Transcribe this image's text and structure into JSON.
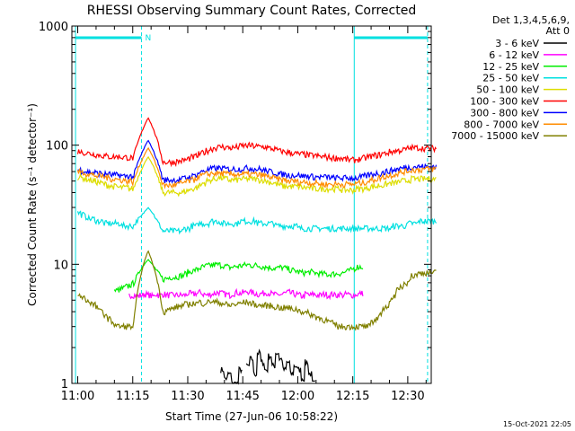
{
  "chart_data": {
    "type": "line",
    "title": "RHESSI Observing Summary Count Rates, Corrected",
    "xlabel": "Start Time (27-Jun-06 10:58:22)",
    "ylabel": "Corrected Count Rate (s⁻¹ detector⁻¹)",
    "y_scale": "log",
    "ylim": [
      1,
      1000
    ],
    "y_ticks": [
      {
        "value": 1,
        "label": "1"
      },
      {
        "value": 10,
        "label": "10"
      },
      {
        "value": 100,
        "label": "100"
      },
      {
        "value": 1000,
        "label": "1000"
      }
    ],
    "x_ticks": [
      "11:00",
      "11:15",
      "11:30",
      "11:45",
      "12:00",
      "12:15",
      "12:30"
    ],
    "x_tick_minutes": [
      0,
      15,
      30,
      45,
      60,
      75,
      90
    ],
    "x_range_minutes": [
      -1.6,
      96.4
    ],
    "legend_header": [
      "Det 1,3,4,5,6,9,",
      "Att 0"
    ],
    "legend_position": "right",
    "night_marker": "N",
    "bands": [
      {
        "x_minutes": [
          -0.6,
          17.4
        ],
        "color": "#00e0e0"
      },
      {
        "x_minutes": [
          75.4,
          95.4
        ],
        "color": "#00e0e0"
      }
    ],
    "series": [
      {
        "name": "3 - 6 keV",
        "color": "#000000",
        "flare": 3.2,
        "values": [
          0,
          0,
          0,
          0,
          0,
          0,
          0,
          0,
          0,
          0,
          0,
          0,
          0,
          0,
          0,
          0,
          0,
          0,
          0,
          0,
          0,
          0,
          0,
          0,
          0,
          0,
          0,
          0,
          0,
          0,
          0,
          0,
          0,
          0,
          0,
          0,
          0,
          0,
          0,
          1.3,
          1.1,
          1.2,
          1.0,
          1.0,
          1.3,
          0,
          1.4,
          1.6,
          1.2,
          1.8,
          1.5,
          1.3,
          1.7,
          1.4,
          1.8,
          1.6,
          1.3,
          1.5,
          1.2,
          1.4,
          1.3,
          1.1,
          1.5,
          1.2,
          1.0,
          0,
          0,
          0,
          0,
          0,
          0,
          0,
          0,
          0,
          0,
          0,
          0,
          0,
          0,
          0,
          0,
          0,
          0,
          0,
          0,
          0,
          0,
          0,
          0,
          0,
          0,
          0,
          0,
          0,
          0,
          0,
          0,
          0
        ]
      },
      {
        "name": "6 - 12 keV",
        "color": "#ff00ff",
        "flare": 5.0,
        "values": [
          0,
          0,
          0,
          0,
          0,
          0,
          0,
          0,
          0,
          0,
          0,
          0,
          0,
          0,
          5.5,
          5.5,
          5.4,
          5.5,
          5.6,
          5.5,
          5.4,
          5.6,
          5.5,
          5.6,
          5.5,
          5.5,
          5.5,
          5.5,
          5.5,
          5.5,
          5.7,
          5.6,
          5.7,
          5.8,
          5.6,
          5.5,
          5.6,
          5.7,
          5.8,
          5.7,
          5.6,
          5.5,
          5.7,
          5.8,
          5.7,
          5.8,
          5.9,
          5.8,
          5.7,
          5.6,
          5.7,
          5.8,
          5.7,
          5.6,
          5.5,
          5.6,
          5.7,
          5.8,
          5.7,
          5.6,
          5.5,
          5.4,
          5.6,
          5.5,
          5.6,
          5.5,
          5.5,
          5.6,
          5.5,
          5.6,
          5.5,
          5.6,
          5.5,
          5.6,
          5.5,
          5.5,
          5.6,
          5.7,
          0,
          0,
          0,
          0,
          0,
          0,
          0,
          0,
          0,
          0,
          0,
          0,
          0,
          0,
          0,
          0,
          0
        ]
      },
      {
        "name": "12 - 25 keV",
        "color": "#00ee00",
        "flare": 11.0,
        "values": [
          0,
          0,
          0,
          0,
          0,
          0,
          0,
          0,
          0,
          0,
          6.0,
          6.1,
          6.3,
          6.5,
          6.7,
          6.9,
          7.0,
          7.2,
          7.2,
          7.3,
          7.3,
          7.3,
          7.4,
          7.5,
          7.6,
          7.8,
          7.8,
          7.9,
          8.0,
          8.3,
          8.6,
          8.8,
          9.0,
          9.3,
          9.5,
          9.7,
          9.8,
          9.9,
          9.9,
          9.8,
          9.6,
          9.4,
          9.5,
          9.6,
          9.7,
          9.8,
          9.9,
          9.8,
          9.8,
          9.7,
          9.6,
          9.5,
          9.4,
          9.3,
          9.3,
          9.4,
          9.3,
          9.1,
          8.9,
          8.8,
          8.6,
          8.5,
          8.5,
          8.6,
          8.5,
          8.4,
          8.3,
          8.3,
          8.2,
          8.3,
          8.3,
          8.4,
          8.5,
          8.7,
          8.9,
          9.2,
          9.5,
          9.5,
          0,
          0,
          0,
          0,
          0,
          0,
          0,
          0,
          0,
          0,
          0,
          0,
          0,
          0,
          0,
          0,
          0
        ]
      },
      {
        "name": "25 - 50 keV",
        "color": "#00e0e0",
        "flare": 30.0,
        "values": [
          27,
          26,
          25,
          24,
          24,
          23,
          23,
          22,
          22,
          22,
          22,
          22,
          21,
          21,
          21,
          21,
          21,
          20,
          20,
          20,
          20,
          19,
          19,
          19,
          19,
          19,
          19,
          19,
          19,
          20,
          20,
          21,
          21,
          22,
          22,
          22,
          23,
          23,
          23,
          22,
          22,
          22,
          22,
          22,
          23,
          23,
          23,
          23,
          23,
          22,
          22,
          22,
          22,
          22,
          21,
          21,
          21,
          21,
          21,
          21,
          20,
          20,
          20,
          20,
          20,
          20,
          20,
          20,
          20,
          20,
          20,
          20,
          20,
          20,
          20,
          20,
          20,
          20,
          20,
          20,
          20,
          20,
          20,
          20,
          20,
          20,
          21,
          21,
          21,
          21,
          22,
          22,
          22,
          23,
          23,
          23,
          23,
          23
        ]
      },
      {
        "name": "50 - 100 keV",
        "color": "#dddd00",
        "flare": 80.0,
        "values": [
          54,
          53,
          52,
          51,
          50,
          49,
          48,
          47,
          46,
          45,
          45,
          44,
          44,
          44,
          43,
          43,
          42,
          42,
          41,
          41,
          41,
          40,
          40,
          40,
          40,
          40,
          40,
          40,
          40,
          41,
          42,
          43,
          44,
          46,
          48,
          50,
          51,
          52,
          53,
          53,
          52,
          51,
          51,
          51,
          52,
          52,
          52,
          52,
          52,
          51,
          51,
          50,
          49,
          48,
          47,
          46,
          45,
          45,
          45,
          45,
          45,
          44,
          44,
          44,
          43,
          43,
          43,
          43,
          43,
          43,
          43,
          43,
          42,
          42,
          42,
          42,
          43,
          43,
          43,
          44,
          45,
          45,
          46,
          46,
          47,
          48,
          48,
          49,
          50,
          50,
          51,
          52,
          52,
          52,
          52,
          52,
          52,
          52
        ]
      },
      {
        "name": "100 - 300 keV",
        "color": "#ff0000",
        "flare": 170.0,
        "values": [
          89,
          87,
          86,
          85,
          84,
          83,
          82,
          81,
          80,
          80,
          80,
          80,
          79,
          79,
          78,
          78,
          77,
          76,
          75,
          74,
          74,
          73,
          72,
          72,
          72,
          72,
          72,
          73,
          74,
          75,
          77,
          79,
          81,
          84,
          87,
          90,
          93,
          95,
          96,
          97,
          96,
          95,
          95,
          96,
          98,
          99,
          99,
          99,
          98,
          97,
          97,
          96,
          94,
          93,
          91,
          89,
          88,
          87,
          86,
          85,
          84,
          84,
          83,
          82,
          82,
          81,
          80,
          80,
          79,
          78,
          78,
          78,
          77,
          76,
          75,
          75,
          76,
          77,
          78,
          80,
          81,
          82,
          83,
          85,
          86,
          88,
          89,
          90,
          91,
          92,
          94,
          95,
          95,
          95,
          94,
          94,
          94,
          94
        ]
      },
      {
        "name": "300 - 800 keV",
        "color": "#0000ff",
        "flare": 110.0,
        "values": [
          62,
          61,
          60,
          59,
          59,
          58,
          58,
          57,
          57,
          56,
          56,
          56,
          55,
          55,
          55,
          54,
          54,
          53,
          53,
          53,
          52,
          52,
          52,
          51,
          51,
          51,
          51,
          51,
          52,
          53,
          54,
          55,
          57,
          59,
          61,
          62,
          63,
          64,
          64,
          64,
          63,
          63,
          63,
          63,
          63,
          64,
          64,
          64,
          63,
          63,
          62,
          61,
          60,
          59,
          58,
          57,
          57,
          56,
          56,
          56,
          56,
          55,
          55,
          55,
          54,
          54,
          54,
          54,
          54,
          53,
          53,
          53,
          53,
          53,
          53,
          53,
          53,
          54,
          55,
          56,
          57,
          58,
          58,
          59,
          60,
          61,
          62,
          63,
          64,
          65,
          65,
          66,
          66,
          66,
          66,
          66,
          66,
          66
        ]
      },
      {
        "name": "800 - 7000 keV",
        "color": "#ff8c00",
        "flare": 95.0,
        "values": [
          60,
          59,
          58,
          57,
          56,
          55,
          55,
          54,
          53,
          52,
          52,
          51,
          51,
          50,
          50,
          49,
          49,
          48,
          48,
          47,
          47,
          46,
          46,
          46,
          46,
          46,
          46,
          47,
          48,
          49,
          50,
          51,
          53,
          55,
          56,
          57,
          58,
          58,
          58,
          58,
          57,
          57,
          57,
          57,
          57,
          57,
          57,
          57,
          57,
          56,
          56,
          55,
          54,
          53,
          52,
          51,
          51,
          50,
          50,
          50,
          49,
          49,
          49,
          48,
          48,
          48,
          47,
          47,
          47,
          47,
          47,
          47,
          47,
          47,
          47,
          47,
          48,
          48,
          49,
          50,
          51,
          52,
          53,
          54,
          55,
          56,
          57,
          58,
          59,
          60,
          61,
          62,
          62,
          62,
          63,
          63,
          63,
          63
        ]
      },
      {
        "name": "7000 - 15000 keV",
        "color": "#808000",
        "flare": 13.0,
        "values": [
          5.5,
          5.3,
          5.0,
          4.8,
          4.6,
          4.3,
          4.0,
          3.8,
          3.5,
          3.3,
          3.1,
          3.0,
          3.0,
          3.0,
          3.0,
          3.0,
          3.0,
          3.2,
          3.4,
          3.5,
          3.6,
          3.8,
          3.9,
          4.0,
          4.1,
          4.2,
          4.3,
          4.4,
          4.5,
          4.6,
          4.6,
          4.7,
          4.7,
          4.8,
          4.7,
          4.8,
          4.9,
          4.8,
          4.8,
          4.7,
          4.6,
          4.5,
          4.6,
          4.6,
          4.7,
          4.8,
          4.8,
          4.7,
          4.6,
          4.5,
          4.5,
          4.5,
          4.5,
          4.4,
          4.4,
          4.3,
          4.3,
          4.3,
          4.2,
          4.2,
          4.1,
          4.0,
          3.9,
          3.8,
          3.7,
          3.6,
          3.5,
          3.4,
          3.3,
          3.2,
          3.1,
          3.0,
          3.0,
          3.0,
          3.0,
          3.0,
          3.0,
          3.0,
          3.0,
          3.0,
          3.2,
          3.5,
          3.8,
          4.1,
          4.5,
          5.0,
          5.5,
          6.0,
          6.5,
          7.0,
          7.5,
          8.0,
          8.2,
          8.4,
          8.5,
          8.5,
          8.5,
          8.5
        ]
      }
    ]
  },
  "footer": {
    "timestamp": "15-Oct-2021 22:05"
  }
}
